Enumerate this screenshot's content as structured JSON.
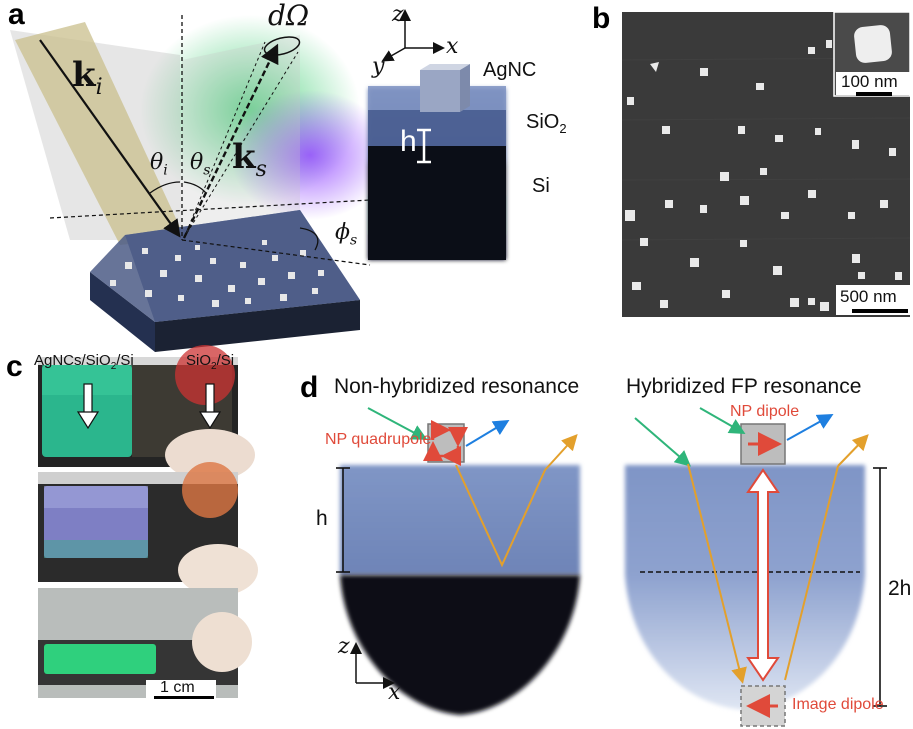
{
  "panels": {
    "a": {
      "label": "a",
      "k_in": "k",
      "k_in_sub": "i",
      "k_out": "k",
      "k_out_sub": "s",
      "theta_i": "θ",
      "theta_i_sub": "i",
      "theta_s": "θ",
      "theta_s_sub": "s",
      "phi_s": "ϕ",
      "phi_s_sub": "s",
      "solid_angle": "dΩ",
      "axis_z": "z",
      "axis_x": "x",
      "axis_y": "y",
      "layer_top": "AgNC",
      "layer_mid": "SiO",
      "layer_mid_sub": "2",
      "layer_bottom": "Si",
      "thickness": "h"
    },
    "b": {
      "label": "b",
      "scale_inset": "100 nm",
      "scale_main": "500 nm"
    },
    "c": {
      "label": "c",
      "left_sample": "AgNCs/SiO",
      "left_sample_sub": "2",
      "left_sample_tail": "/Si",
      "right_sample": "SiO",
      "right_sample_sub": "2",
      "right_sample_tail": "/Si",
      "scale": "1 cm"
    },
    "d": {
      "label": "d",
      "left_title": "Non-hybridized resonance",
      "right_title": "Hybridized FP resonance",
      "np_quadrupole": "NP quadrupole",
      "np_dipole": "NP dipole",
      "image_dipole": "Image dipole",
      "h": "h",
      "two_h": "2h",
      "axis_z": "z",
      "axis_x": "x"
    }
  },
  "colors": {
    "beam": "#c9bf8c",
    "green": "#2fb57a",
    "blue": "#1e7fe0",
    "orange": "#e3a02c",
    "red": "#e04a3a",
    "silica": "#7f93c2",
    "silicon": "#10131d",
    "sem": "#3c3c3c"
  }
}
